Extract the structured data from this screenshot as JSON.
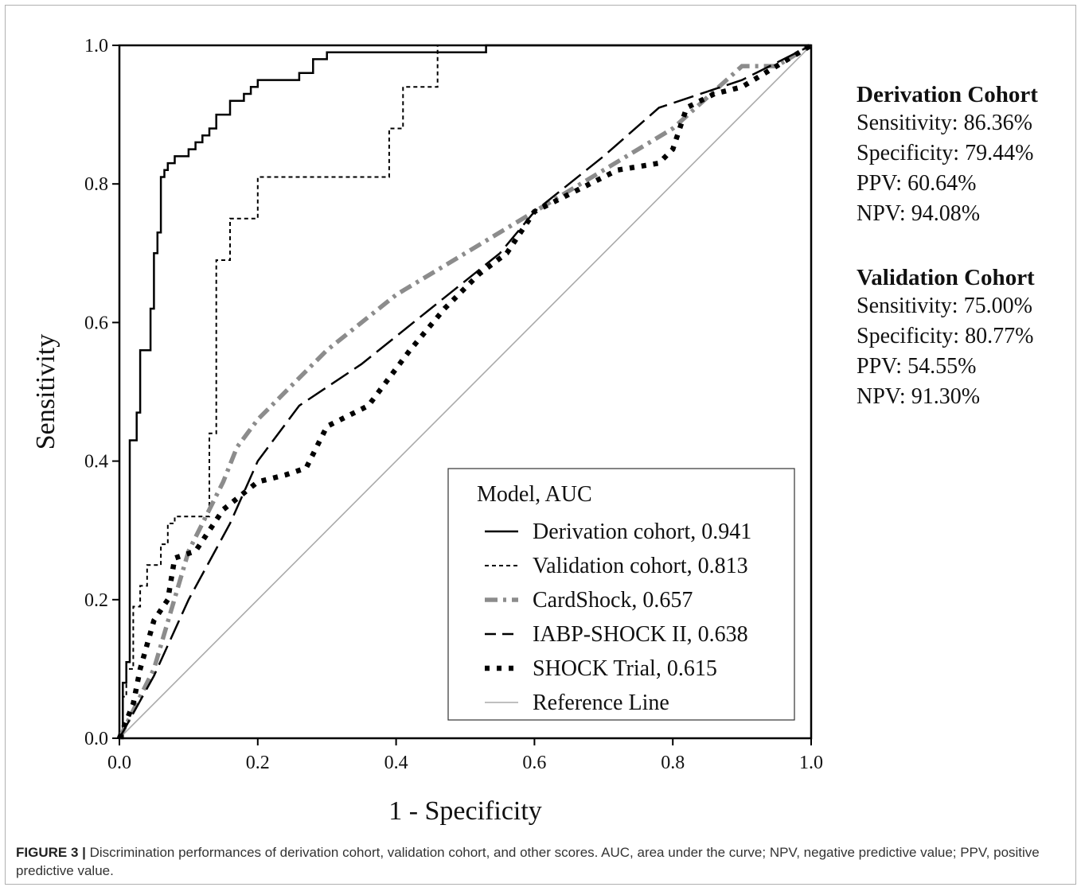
{
  "chart_data": {
    "type": "line",
    "xlabel": "1 - Specificity",
    "ylabel": "Sensitivity",
    "xlim": [
      0,
      1
    ],
    "ylim": [
      0,
      1
    ],
    "xticks": [
      "0.0",
      "0.2",
      "0.4",
      "0.6",
      "0.8",
      "1.0"
    ],
    "yticks": [
      "0.0",
      "0.2",
      "0.4",
      "0.6",
      "0.8",
      "1.0"
    ],
    "grid": false,
    "legend_position": "bottom-right",
    "legend_title": "Model, AUC",
    "series": [
      {
        "name": "Derivation cohort, 0.941",
        "style": "solid",
        "color": "#000000",
        "x": [
          0,
          0.005,
          0.005,
          0.01,
          0.01,
          0.015,
          0.015,
          0.025,
          0.025,
          0.03,
          0.03,
          0.045,
          0.045,
          0.05,
          0.05,
          0.055,
          0.055,
          0.06,
          0.06,
          0.065,
          0.065,
          0.07,
          0.07,
          0.08,
          0.08,
          0.1,
          0.1,
          0.11,
          0.11,
          0.12,
          0.12,
          0.13,
          0.13,
          0.14,
          0.14,
          0.16,
          0.16,
          0.18,
          0.18,
          0.19,
          0.19,
          0.2,
          0.2,
          0.26,
          0.26,
          0.28,
          0.28,
          0.3,
          0.3,
          0.53,
          0.53,
          1
        ],
        "y": [
          0,
          0,
          0.08,
          0.08,
          0.11,
          0.11,
          0.43,
          0.43,
          0.47,
          0.47,
          0.56,
          0.56,
          0.62,
          0.62,
          0.7,
          0.7,
          0.73,
          0.73,
          0.81,
          0.81,
          0.82,
          0.82,
          0.83,
          0.83,
          0.84,
          0.84,
          0.85,
          0.85,
          0.86,
          0.86,
          0.87,
          0.87,
          0.88,
          0.88,
          0.9,
          0.9,
          0.92,
          0.92,
          0.93,
          0.93,
          0.94,
          0.94,
          0.95,
          0.95,
          0.96,
          0.96,
          0.98,
          0.98,
          0.99,
          0.99,
          1,
          1
        ]
      },
      {
        "name": "Validation cohort, 0.813",
        "style": "dashed",
        "color": "#000000",
        "x": [
          0,
          0.005,
          0.005,
          0.01,
          0.01,
          0.02,
          0.02,
          0.03,
          0.03,
          0.04,
          0.04,
          0.06,
          0.06,
          0.07,
          0.07,
          0.08,
          0.08,
          0.13,
          0.13,
          0.14,
          0.14,
          0.16,
          0.16,
          0.2,
          0.2,
          0.39,
          0.39,
          0.41,
          0.41,
          0.46,
          0.46,
          0.5,
          0.5,
          1
        ],
        "y": [
          0,
          0,
          0.06,
          0.06,
          0.1,
          0.1,
          0.19,
          0.19,
          0.22,
          0.22,
          0.25,
          0.25,
          0.28,
          0.28,
          0.31,
          0.31,
          0.32,
          0.32,
          0.44,
          0.44,
          0.69,
          0.69,
          0.75,
          0.75,
          0.81,
          0.81,
          0.88,
          0.88,
          0.94,
          0.94,
          1,
          1,
          1,
          1
        ]
      },
      {
        "name": "CardShock, 0.657",
        "style": "dashdot",
        "color": "#8c8c8c",
        "x": [
          0,
          0.05,
          0.1,
          0.15,
          0.17,
          0.2,
          0.3,
          0.4,
          0.5,
          0.6,
          0.7,
          0.8,
          0.9,
          0.95,
          1
        ],
        "y": [
          0,
          0.1,
          0.27,
          0.37,
          0.42,
          0.46,
          0.56,
          0.64,
          0.7,
          0.76,
          0.82,
          0.88,
          0.97,
          0.97,
          1
        ]
      },
      {
        "name": "IABP-SHOCK II, 0.638",
        "style": "longdash",
        "color": "#000000",
        "x": [
          0,
          0.05,
          0.1,
          0.16,
          0.2,
          0.26,
          0.35,
          0.45,
          0.55,
          0.6,
          0.7,
          0.78,
          0.9,
          1
        ],
        "y": [
          0,
          0.09,
          0.2,
          0.31,
          0.4,
          0.48,
          0.54,
          0.62,
          0.7,
          0.76,
          0.84,
          0.91,
          0.95,
          1
        ]
      },
      {
        "name": "SHOCK Trial, 0.615",
        "style": "dotted",
        "color": "#000000",
        "x": [
          0,
          0.02,
          0.03,
          0.05,
          0.07,
          0.08,
          0.11,
          0.15,
          0.2,
          0.24,
          0.27,
          0.3,
          0.34,
          0.36,
          0.42,
          0.47,
          0.52,
          0.56,
          0.6,
          0.66,
          0.72,
          0.78,
          0.8,
          0.82,
          0.86,
          0.9,
          0.95,
          1
        ],
        "y": [
          0,
          0.05,
          0.1,
          0.17,
          0.2,
          0.26,
          0.27,
          0.33,
          0.37,
          0.38,
          0.39,
          0.45,
          0.47,
          0.48,
          0.56,
          0.62,
          0.67,
          0.7,
          0.76,
          0.79,
          0.82,
          0.83,
          0.85,
          0.91,
          0.93,
          0.94,
          0.97,
          1
        ]
      },
      {
        "name": "Reference Line",
        "style": "solid",
        "color": "#aaaaaa",
        "x": [
          0,
          1
        ],
        "y": [
          0,
          1
        ]
      }
    ]
  },
  "stats": {
    "derivation": {
      "title": "Derivation Cohort",
      "lines": [
        "Sensitivity: 86.36%",
        "Specificity: 79.44%",
        "PPV: 60.64%",
        "NPV: 94.08%"
      ]
    },
    "validation": {
      "title": "Validation Cohort",
      "lines": [
        "Sensitivity: 75.00%",
        "Specificity: 80.77%",
        "PPV: 54.55%",
        "NPV: 91.30%"
      ]
    }
  },
  "caption": {
    "label": "FIGURE 3 |",
    "text": " Discrimination performances of derivation cohort, validation cohort, and other scores. AUC, area under the curve; NPV, negative predictive value; PPV, positive predictive value."
  }
}
